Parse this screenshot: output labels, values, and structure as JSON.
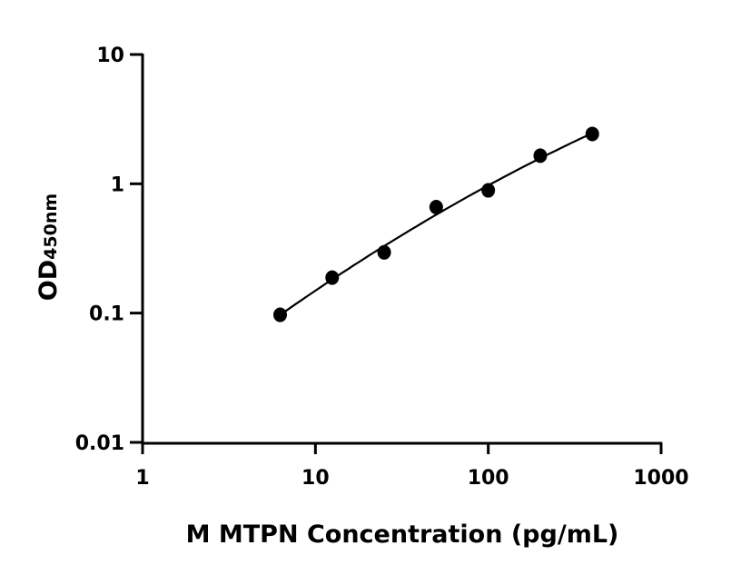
{
  "chart_data": {
    "type": "scatter",
    "title": "",
    "xlabel": "M MTPN Concentration (pg/mL)",
    "ylabel_main": "OD",
    "ylabel_sub": "450nm",
    "x_scale": "log",
    "y_scale": "log",
    "xlim": [
      1,
      1000
    ],
    "ylim": [
      0.01,
      10
    ],
    "x_ticks": [
      "1",
      "10",
      "100",
      "1000"
    ],
    "y_ticks": [
      "0.01",
      "0.1",
      "1",
      "10"
    ],
    "grid": false,
    "fit_curve": true,
    "series": [
      {
        "x": [
          6.25,
          12.5,
          25,
          50,
          100,
          200,
          400
        ],
        "y": [
          0.097,
          0.188,
          0.295,
          0.66,
          0.89,
          1.65,
          2.43
        ]
      }
    ],
    "colors": {
      "points": "#000000",
      "curve": "#000000",
      "axes": "#000000"
    }
  }
}
